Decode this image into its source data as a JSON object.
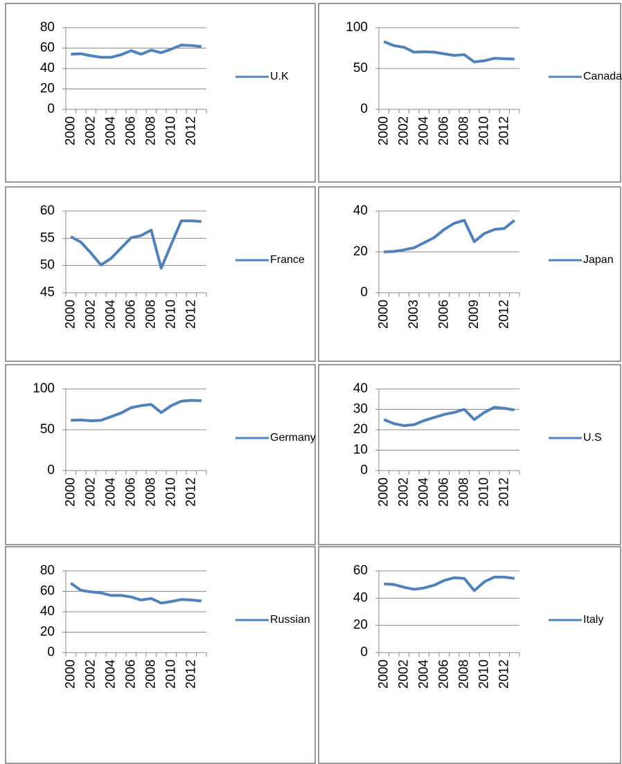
{
  "chart_data": [
    {
      "type": "line",
      "categories": [
        "2000",
        null,
        "2002",
        null,
        "2004",
        null,
        "2006",
        null,
        "2008",
        null,
        "2010",
        null,
        "2012",
        null
      ],
      "series": [
        {
          "name": "U.K",
          "color": "#4f81bd",
          "values": [
            54,
            54.5,
            52.5,
            51,
            51,
            53.5,
            57.5,
            54,
            58,
            55.5,
            59,
            63,
            62.5,
            61.5
          ]
        }
      ],
      "ylim": [
        0,
        80
      ],
      "yticks": [
        0,
        20,
        40,
        60,
        80
      ],
      "grid": true
    },
    {
      "type": "line",
      "categories": [
        "2000",
        null,
        "2002",
        null,
        "2004",
        null,
        "2006",
        null,
        "2008",
        null,
        "2010",
        null,
        "2012",
        null
      ],
      "series": [
        {
          "name": "Canada",
          "color": "#4f81bd",
          "values": [
            83,
            78,
            76,
            70,
            70.5,
            70,
            68,
            66,
            67,
            58,
            59.5,
            62.5,
            62,
            61.5
          ]
        }
      ],
      "ylim": [
        0,
        100
      ],
      "yticks": [
        0,
        50,
        100
      ],
      "grid": true
    },
    {
      "type": "line",
      "categories": [
        "2000",
        null,
        "2002",
        null,
        "2004",
        null,
        "2006",
        null,
        "2008",
        null,
        "2010",
        null,
        "2012",
        null
      ],
      "series": [
        {
          "name": "France",
          "color": "#4f81bd",
          "values": [
            55.3,
            54.3,
            52.3,
            50.1,
            51.3,
            53.2,
            55.1,
            55.5,
            56.5,
            49.5,
            53.9,
            58.2,
            58.2,
            58.1
          ]
        }
      ],
      "ylim": [
        45,
        60
      ],
      "yticks": [
        45,
        50,
        55,
        60
      ],
      "grid": true
    },
    {
      "type": "line",
      "categories": [
        "2000",
        null,
        null,
        "2003",
        null,
        null,
        "2006",
        null,
        null,
        "2009",
        null,
        null,
        "2012",
        null
      ],
      "series": [
        {
          "name": "Japan",
          "color": "#4f81bd",
          "values": [
            20,
            20.2,
            21,
            22,
            24.5,
            27,
            31,
            34,
            35.5,
            25,
            29,
            31,
            31.5,
            35.5
          ]
        }
      ],
      "ylim": [
        0,
        40
      ],
      "yticks": [
        0,
        20,
        40
      ],
      "grid": true
    },
    {
      "type": "line",
      "categories": [
        "2000",
        null,
        "2002",
        null,
        "2004",
        null,
        "2006",
        null,
        "2008",
        null,
        "2010",
        null,
        "2012",
        null
      ],
      "series": [
        {
          "name": "Germany",
          "color": "#4f81bd",
          "values": [
            61.5,
            62,
            61,
            61.5,
            66,
            70.5,
            77,
            79.5,
            81,
            71,
            79.5,
            85,
            86,
            85.5
          ]
        }
      ],
      "ylim": [
        0,
        100
      ],
      "yticks": [
        0,
        50,
        100
      ],
      "grid": true
    },
    {
      "type": "line",
      "categories": [
        "2000",
        null,
        "2002",
        null,
        "2004",
        null,
        "2006",
        null,
        "2008",
        null,
        "2010",
        null,
        "2012",
        null
      ],
      "series": [
        {
          "name": "U.S",
          "color": "#4f81bd",
          "values": [
            25,
            23,
            22,
            22.5,
            24.5,
            26,
            27.5,
            28.5,
            30,
            25,
            28.5,
            31,
            30.5,
            29.7
          ]
        }
      ],
      "ylim": [
        0,
        40
      ],
      "yticks": [
        0,
        10,
        20,
        30,
        40
      ],
      "grid": true
    },
    {
      "type": "line",
      "categories": [
        "2000",
        null,
        "2002",
        null,
        "2004",
        null,
        "2006",
        null,
        "2008",
        null,
        "2010",
        null,
        "2012",
        null
      ],
      "series": [
        {
          "name": "Russian",
          "color": "#4f81bd",
          "values": [
            68,
            61,
            59.5,
            58.5,
            56,
            56,
            54.5,
            51.5,
            53,
            48.5,
            50,
            52,
            51.5,
            50.5
          ]
        }
      ],
      "ylim": [
        0,
        80
      ],
      "yticks": [
        0,
        20,
        40,
        60,
        80
      ],
      "grid": true
    },
    {
      "type": "line",
      "categories": [
        "2000",
        null,
        "2002",
        null,
        "2004",
        null,
        "2006",
        null,
        "2008",
        null,
        "2010",
        null,
        "2012",
        null
      ],
      "series": [
        {
          "name": "Italy",
          "color": "#4f81bd",
          "values": [
            50.5,
            50,
            48,
            46.5,
            47.5,
            49.5,
            53,
            55,
            54.5,
            45.5,
            52,
            55.5,
            55.5,
            54.5
          ]
        }
      ],
      "ylim": [
        0,
        60
      ],
      "yticks": [
        0,
        20,
        40,
        60
      ],
      "grid": true
    }
  ]
}
